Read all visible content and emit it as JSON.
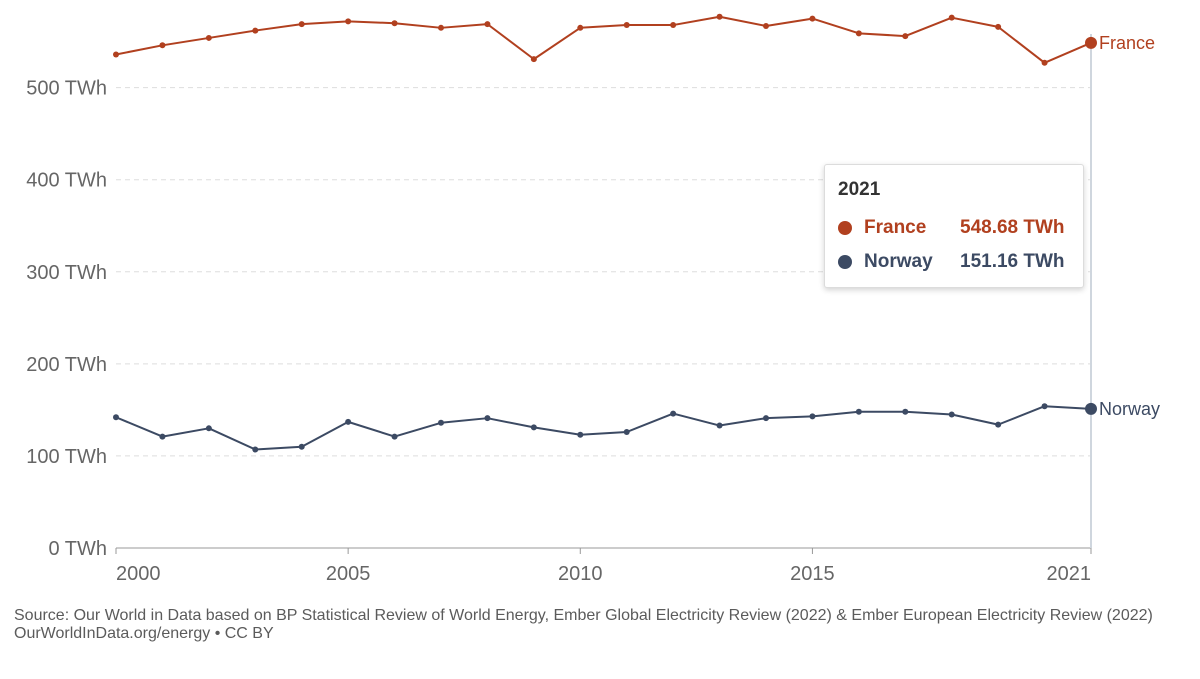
{
  "chart_data": {
    "type": "line",
    "title": "",
    "xlabel": "",
    "ylabel": "",
    "x": [
      2000,
      2001,
      2002,
      2003,
      2004,
      2005,
      2006,
      2007,
      2008,
      2009,
      2010,
      2011,
      2012,
      2013,
      2014,
      2015,
      2016,
      2017,
      2018,
      2019,
      2020,
      2021
    ],
    "xlim": [
      2000,
      2021
    ],
    "ylim": [
      0,
      580
    ],
    "y_ticks": [
      0,
      100,
      200,
      300,
      400,
      500
    ],
    "y_tick_labels": [
      "0 TWh",
      "100 TWh",
      "200 TWh",
      "300 TWh",
      "400 TWh",
      "500 TWh"
    ],
    "x_ticks": [
      2000,
      2005,
      2010,
      2015,
      2021
    ],
    "x_tick_labels": [
      "2000",
      "2005",
      "2010",
      "2015",
      "2021"
    ],
    "series": [
      {
        "name": "France",
        "color": "#b1401f",
        "values": [
          536,
          546,
          554,
          562,
          569,
          572,
          570,
          565,
          569,
          531,
          565,
          568,
          568,
          577,
          567,
          575,
          559,
          556,
          576,
          566,
          527,
          548.68
        ]
      },
      {
        "name": "Norway",
        "color": "#3c4a63",
        "values": [
          142,
          121,
          130,
          107,
          110,
          137,
          121,
          136,
          141,
          131,
          123,
          126,
          146,
          133,
          141,
          143,
          148,
          148,
          145,
          134,
          154,
          151.16
        ]
      }
    ]
  },
  "tooltip": {
    "year": "2021",
    "rows": [
      {
        "name": "France",
        "value": "548.68 TWh",
        "color": "#b1401f"
      },
      {
        "name": "Norway",
        "value": "151.16 TWh",
        "color": "#3c4a63"
      }
    ]
  },
  "footer": {
    "source": "Source: Our World in Data based on BP Statistical Review of World Energy, Ember Global Electricity Review (2022) & Ember European Electricity Review (2022)",
    "credit": "OurWorldInData.org/energy • CC BY"
  }
}
